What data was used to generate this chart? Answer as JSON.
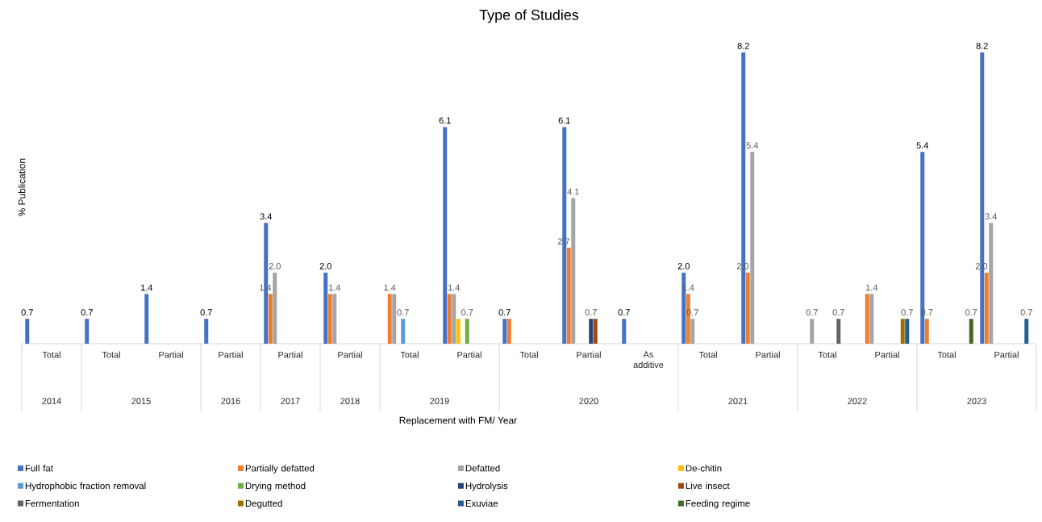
{
  "chart_data": {
    "type": "bar",
    "title": "Type of Studies",
    "ylabel": "% Publication",
    "categories": [
      "Total",
      "Total",
      "Partial",
      "Partial",
      "Partial",
      "Partial",
      "Total",
      "Partial",
      "Total",
      "Partial",
      "As additive",
      "Total",
      "Partial",
      "Total",
      "Partial",
      "Total",
      "Partial"
    ],
    "annotations": [
      "2014",
      "2015",
      "2016",
      "2017",
      "2018",
      "2019",
      "2020",
      "2021",
      "2022",
      "2023",
      "Replacement with FM/ Year"
    ],
    "series": [
      {
        "name": "Full fat",
        "color": "#4472c4",
        "values": [
          0.7,
          0.7,
          1.4,
          0.7,
          3.4,
          2.0,
          null,
          6.1,
          0.7,
          6.1,
          0.7,
          2.0,
          8.2,
          null,
          null,
          5.4,
          8.2
        ],
        "value_labels": [
          "0.7",
          "0.7",
          "1.4",
          "0.7",
          "3.4",
          "2.0",
          null,
          "6.1",
          "0.7",
          "6.1",
          "0.7",
          "2.0",
          "8.2",
          null,
          null,
          "5.4",
          "8.2"
        ]
      },
      {
        "name": "Partially defatted",
        "color": "#ed7d31",
        "values": [
          null,
          null,
          null,
          null,
          1.4,
          1.4,
          1.4,
          1.4,
          0.7,
          2.7,
          null,
          1.4,
          2.0,
          null,
          1.4,
          0.7,
          2.0
        ],
        "value_labels": [
          null,
          null,
          null,
          null,
          "1.4",
          null,
          "1.4",
          null,
          null,
          "2.7",
          null,
          "1.4",
          "2.0",
          null,
          null,
          "0.7",
          "2.0"
        ]
      },
      {
        "name": "Defatted",
        "color": "#a5a5a5",
        "values": [
          null,
          null,
          null,
          null,
          2.0,
          1.4,
          1.4,
          1.4,
          null,
          4.1,
          null,
          0.7,
          5.4,
          0.7,
          1.4,
          null,
          3.4
        ],
        "value_labels": [
          null,
          null,
          null,
          null,
          "2.0",
          "1.4",
          null,
          "1.4",
          null,
          "4.1",
          null,
          "0.7",
          "5.4",
          "0.7",
          "1.4",
          null,
          "3.4"
        ]
      },
      {
        "name": "De-chitin",
        "color": "#ffc000",
        "values": [
          null,
          null,
          null,
          null,
          null,
          null,
          null,
          0.7,
          null,
          null,
          null,
          null,
          null,
          null,
          null,
          null,
          null
        ],
        "value_labels": [
          null,
          null,
          null,
          null,
          null,
          null,
          null,
          null,
          null,
          null,
          null,
          null,
          null,
          null,
          null,
          null,
          null
        ]
      },
      {
        "name": "Hydrophobic fraction removal",
        "color": "#5b9bd5",
        "values": [
          null,
          null,
          null,
          null,
          null,
          null,
          0.7,
          null,
          null,
          null,
          null,
          null,
          null,
          null,
          null,
          null,
          null
        ],
        "value_labels": [
          null,
          null,
          null,
          null,
          null,
          null,
          "0.7",
          null,
          null,
          null,
          null,
          null,
          null,
          null,
          null,
          null,
          null
        ]
      },
      {
        "name": "Drying method",
        "color": "#70ad47",
        "values": [
          null,
          null,
          null,
          null,
          null,
          null,
          null,
          0.7,
          null,
          null,
          null,
          null,
          null,
          null,
          null,
          null,
          null
        ],
        "value_labels": [
          null,
          null,
          null,
          null,
          null,
          null,
          null,
          "0.7",
          null,
          null,
          null,
          null,
          null,
          null,
          null,
          null,
          null
        ]
      },
      {
        "name": "Hydrolysis",
        "color": "#264478",
        "values": [
          null,
          null,
          null,
          null,
          null,
          null,
          null,
          null,
          null,
          0.7,
          null,
          null,
          null,
          null,
          null,
          null,
          null
        ],
        "value_labels": [
          null,
          null,
          null,
          null,
          null,
          null,
          null,
          null,
          null,
          "0.7",
          null,
          null,
          null,
          null,
          null,
          null,
          null
        ]
      },
      {
        "name": "Live insect",
        "color": "#9e480e",
        "values": [
          null,
          null,
          null,
          null,
          null,
          null,
          null,
          null,
          null,
          0.7,
          null,
          null,
          null,
          null,
          null,
          null,
          null
        ],
        "value_labels": [
          null,
          null,
          null,
          null,
          null,
          null,
          null,
          null,
          null,
          null,
          null,
          null,
          null,
          null,
          null,
          null,
          null
        ]
      },
      {
        "name": "Fermentation",
        "color": "#636363",
        "values": [
          null,
          null,
          null,
          null,
          null,
          null,
          null,
          null,
          null,
          null,
          null,
          null,
          null,
          0.7,
          null,
          null,
          null
        ],
        "value_labels": [
          null,
          null,
          null,
          null,
          null,
          null,
          null,
          null,
          null,
          null,
          null,
          null,
          null,
          "0.7",
          null,
          null,
          null
        ]
      },
      {
        "name": "Degutted",
        "color": "#997300",
        "values": [
          null,
          null,
          null,
          null,
          null,
          null,
          null,
          null,
          null,
          null,
          null,
          null,
          null,
          null,
          0.7,
          null,
          null
        ],
        "value_labels": [
          null,
          null,
          null,
          null,
          null,
          null,
          null,
          null,
          null,
          null,
          null,
          null,
          null,
          null,
          null,
          null,
          null
        ]
      },
      {
        "name": "Exuviae",
        "color": "#255e91",
        "values": [
          null,
          null,
          null,
          null,
          null,
          null,
          null,
          null,
          null,
          null,
          null,
          null,
          null,
          null,
          0.7,
          null,
          0.7
        ],
        "value_labels": [
          null,
          null,
          null,
          null,
          null,
          null,
          null,
          null,
          null,
          null,
          null,
          null,
          null,
          null,
          "0.7",
          null,
          "0.7"
        ]
      },
      {
        "name": "Feeding regime",
        "color": "#43682b",
        "values": [
          null,
          null,
          null,
          null,
          null,
          null,
          null,
          null,
          null,
          null,
          null,
          null,
          null,
          null,
          null,
          0.7,
          null
        ],
        "value_labels": [
          null,
          null,
          null,
          null,
          null,
          null,
          null,
          null,
          null,
          null,
          null,
          null,
          null,
          null,
          null,
          "0.7",
          null
        ]
      }
    ],
    "legend": "bottom"
  }
}
